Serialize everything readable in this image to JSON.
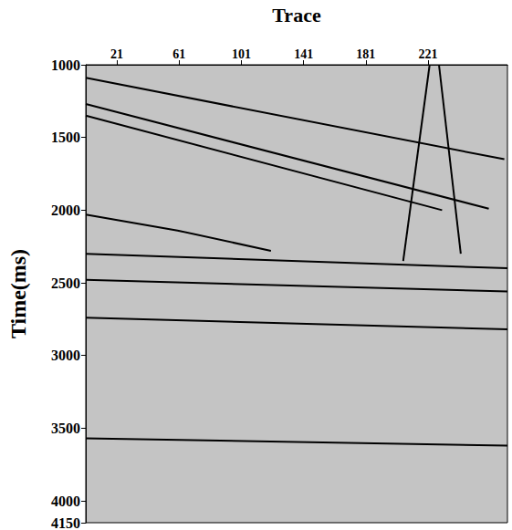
{
  "chart_data": {
    "type": "line",
    "x_label": "Trace",
    "y_label": "Time(ms)",
    "xlim": [
      1,
      272
    ],
    "xticks": [
      21,
      61,
      101,
      141,
      181,
      221
    ],
    "ylim": [
      1000,
      4150
    ],
    "yticks": [
      1000,
      1500,
      2000,
      2500,
      3000,
      3500,
      4000
    ],
    "grid": false,
    "color": "#000000",
    "line_style": "solid",
    "series": [
      {
        "x": [
          1,
          270
        ],
        "values": [
          1090,
          1650
        ]
      },
      {
        "x": [
          1,
          260
        ],
        "values": [
          1270,
          1990
        ]
      },
      {
        "x": [
          1,
          230
        ],
        "values": [
          1350,
          2000
        ]
      },
      {
        "x": [
          1,
          60,
          120
        ],
        "values": [
          2030,
          2140,
          2280
        ]
      },
      {
        "x": [
          1,
          272
        ],
        "values": [
          2300,
          2400
        ]
      },
      {
        "x": [
          1,
          272
        ],
        "values": [
          2480,
          2560
        ]
      },
      {
        "x": [
          1,
          272
        ],
        "values": [
          2740,
          2820
        ]
      },
      {
        "x": [
          1,
          272
        ],
        "values": [
          3570,
          3620
        ]
      },
      {
        "x": [
          205,
          222
        ],
        "values": [
          2350,
          1000
        ]
      },
      {
        "x": [
          228,
          242
        ],
        "values": [
          1000,
          2300
        ]
      }
    ]
  }
}
